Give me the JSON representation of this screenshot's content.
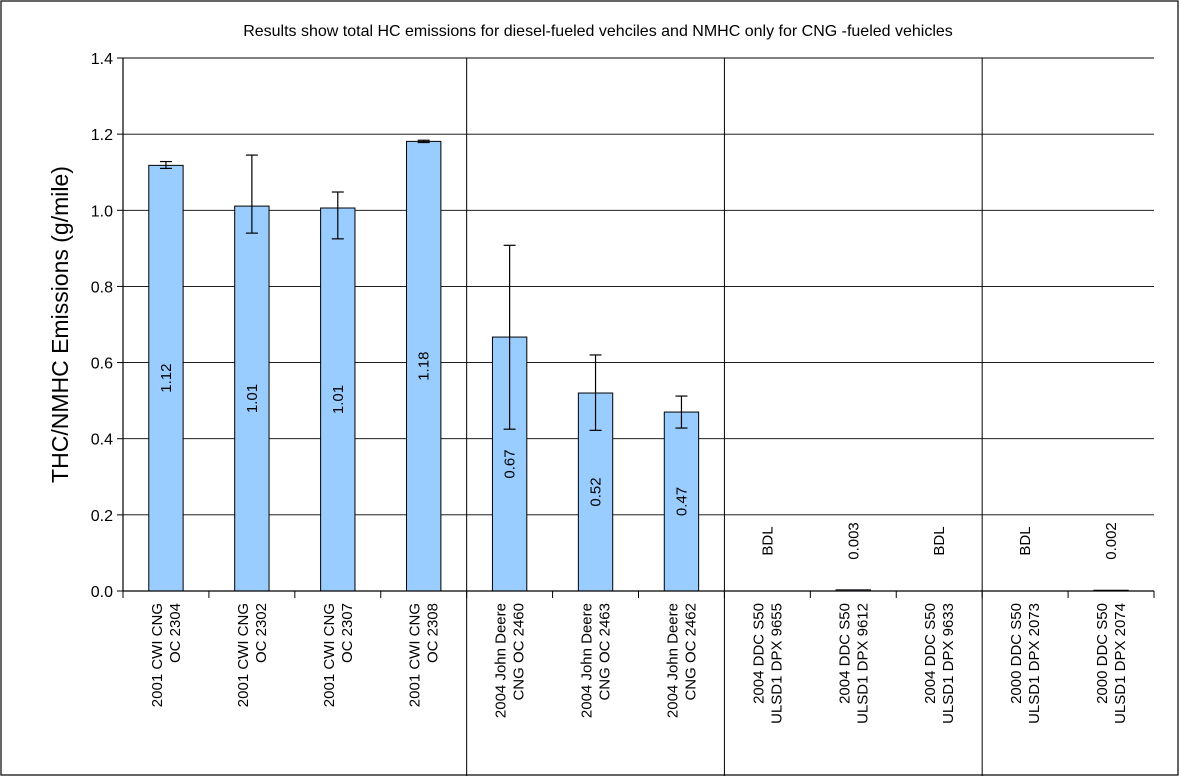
{
  "chart_data": {
    "type": "bar",
    "title": "Results show total HC emissions for diesel-fueled vehciles and NMHC only for CNG -fueled vehicles",
    "ylabel": "THC/NMHC Emissions (g/mile)",
    "xlabel": "",
    "ylim": [
      0,
      1.4
    ],
    "yticks": [
      "0.0",
      "0.2",
      "0.4",
      "0.6",
      "0.8",
      "1.0",
      "1.2",
      "1.4"
    ],
    "grid": true,
    "legend": "none",
    "bar_color": "#99ccff",
    "categories": [
      [
        "2001 CWI CNG",
        "OC 2304"
      ],
      [
        "2001 CWI CNG",
        "OC 2302"
      ],
      [
        "2001 CWI CNG",
        "OC 2307"
      ],
      [
        "2001 CWI CNG",
        "OC 2308"
      ],
      [
        "2004 John Deere",
        "CNG OC 2460"
      ],
      [
        "2004 John Deere",
        "CNG OC 2463"
      ],
      [
        "2004 John Deere",
        "CNG OC 2462"
      ],
      [
        "2004 DDC S50",
        "ULSD1 DPX 9655"
      ],
      [
        "2004 DDC S50",
        "ULSD1 DPX 9612"
      ],
      [
        "2004 DDC S50",
        "ULSD1 DPX 9633"
      ],
      [
        "2000 DDC S50",
        "ULSD1 DPX 2073"
      ],
      [
        "2000 DDC S50",
        "ULSD1 DPX 2074"
      ]
    ],
    "values": [
      1.118,
      1.011,
      1.006,
      1.181,
      0.667,
      0.52,
      0.47,
      0,
      0.003,
      0,
      0,
      0.002
    ],
    "error_low": [
      1.11,
      0.94,
      0.925,
      1.178,
      0.425,
      0.422,
      0.428,
      null,
      null,
      null,
      null,
      null
    ],
    "error_high": [
      1.128,
      1.145,
      1.048,
      1.184,
      0.908,
      0.62,
      0.512,
      null,
      null,
      null,
      null,
      null
    ],
    "data_labels": [
      "1.12",
      "1.01",
      "1.01",
      "1.18",
      "0.67",
      "0.52",
      "0.47",
      "BDL",
      "0.003",
      "BDL",
      "BDL",
      "0.002"
    ],
    "group_sizes": [
      4,
      3,
      3,
      2
    ]
  }
}
